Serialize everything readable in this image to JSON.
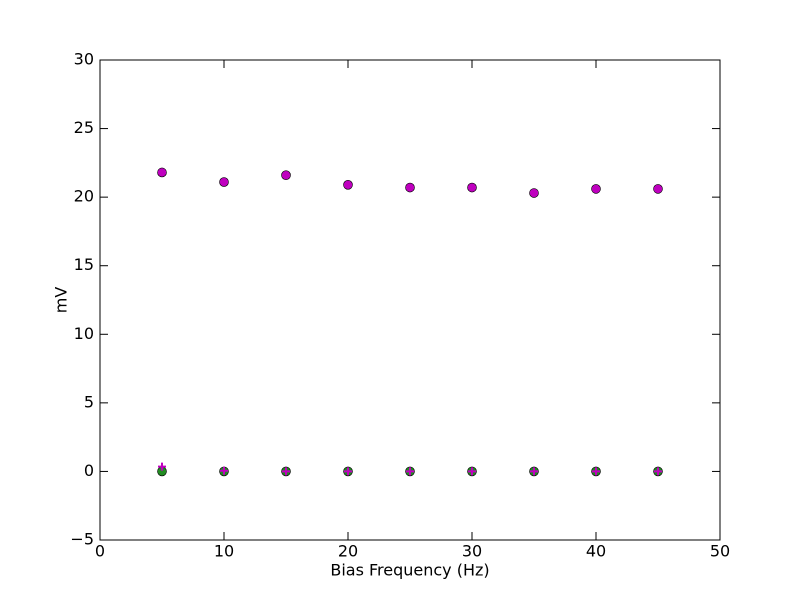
{
  "chart_data": {
    "type": "scatter",
    "x_label": "Bias Frequency (Hz)",
    "y_label": "mV",
    "x": [
      5,
      10,
      15,
      20,
      25,
      30,
      35,
      40,
      45
    ],
    "series": [
      {
        "color": "#bf00bf",
        "marker": "circle",
        "values": [
          21.8,
          21.1,
          21.6,
          20.9,
          20.7,
          20.7,
          20.3,
          20.6,
          20.6
        ]
      },
      {
        "color": "#228b22",
        "marker": "circle",
        "values": [
          0.0,
          0.0,
          0.0,
          0.0,
          0.0,
          0.0,
          0.0,
          0.0,
          0.0
        ]
      },
      {
        "color": "#bf00bf",
        "marker": "plus",
        "values": [
          0.35,
          0.05,
          0.0,
          0.0,
          0.0,
          0.0,
          0.0,
          0.0,
          0.0
        ]
      }
    ],
    "xlim": [
      0,
      50
    ],
    "xticks": [
      0,
      10,
      20,
      30,
      40,
      50
    ],
    "ylim": [
      -5,
      30
    ],
    "yticks": [
      {
        "value": -5,
        "label": "−5"
      },
      0,
      5,
      10,
      15,
      20,
      25,
      30
    ],
    "grid": false
  }
}
